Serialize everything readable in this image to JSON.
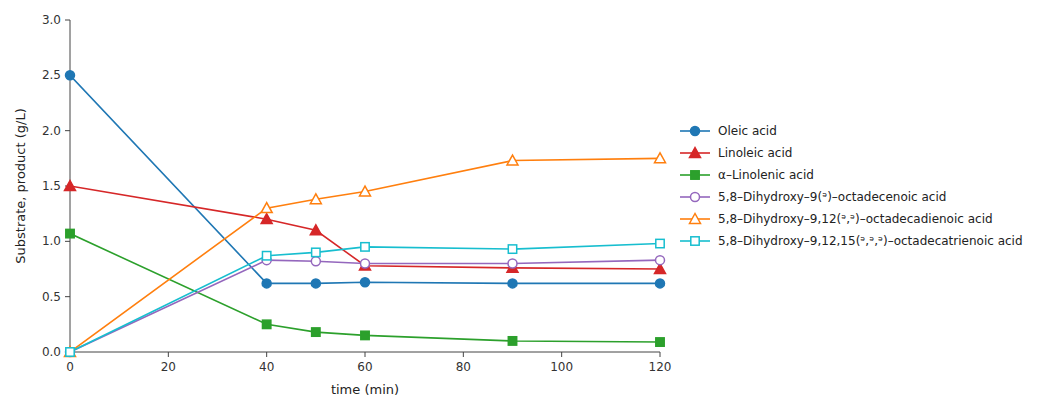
{
  "chart_data": {
    "type": "line",
    "xlabel": "time (min)",
    "ylabel": "Substrate, product (g/L)",
    "x": [
      0,
      40,
      50,
      60,
      90,
      120
    ],
    "series": [
      {
        "name": "Oleic acid",
        "marker": "circle",
        "values": [
          2.5,
          0.62,
          0.62,
          0.63,
          0.62,
          0.62
        ]
      },
      {
        "name": "Linoleic acid",
        "marker": "triangle",
        "values": [
          1.5,
          1.2,
          1.1,
          0.78,
          0.76,
          0.75
        ]
      },
      {
        "name": "α–Linolenic acid",
        "marker": "square",
        "values": [
          1.07,
          0.25,
          0.18,
          0.15,
          0.1,
          0.09
        ]
      },
      {
        "name": "5,8–Dihydroxy–9(ᵊ)–octadecenoic acid",
        "marker": "circle-open",
        "values": [
          0.0,
          0.83,
          0.82,
          0.8,
          0.8,
          0.83
        ]
      },
      {
        "name": "5,8–Dihydroxy–9,12(ᵊ,ᵊ)–octadecadienoic acid",
        "marker": "triangle-open",
        "values": [
          0.0,
          1.3,
          1.38,
          1.45,
          1.73,
          1.75
        ]
      },
      {
        "name": "5,8–Dihydroxy–9,12,15(ᵊ,ᵊ,ᵊ)–octadecatrienoic acid",
        "marker": "square-open",
        "values": [
          0.0,
          0.87,
          0.9,
          0.95,
          0.93,
          0.98
        ]
      }
    ],
    "xlim": [
      0,
      120
    ],
    "ylim": [
      0,
      3.0
    ],
    "xticks": [
      0,
      20,
      40,
      60,
      80,
      100,
      120
    ],
    "yticks": [
      {
        "value": 0,
        "label": "0.0"
      },
      0.5,
      {
        "value": 1,
        "label": "1.0"
      },
      1.5,
      {
        "value": 2,
        "label": "2.0"
      },
      2.5,
      {
        "value": 3,
        "label": "3.0"
      }
    ],
    "grid": false,
    "legend": "right"
  }
}
